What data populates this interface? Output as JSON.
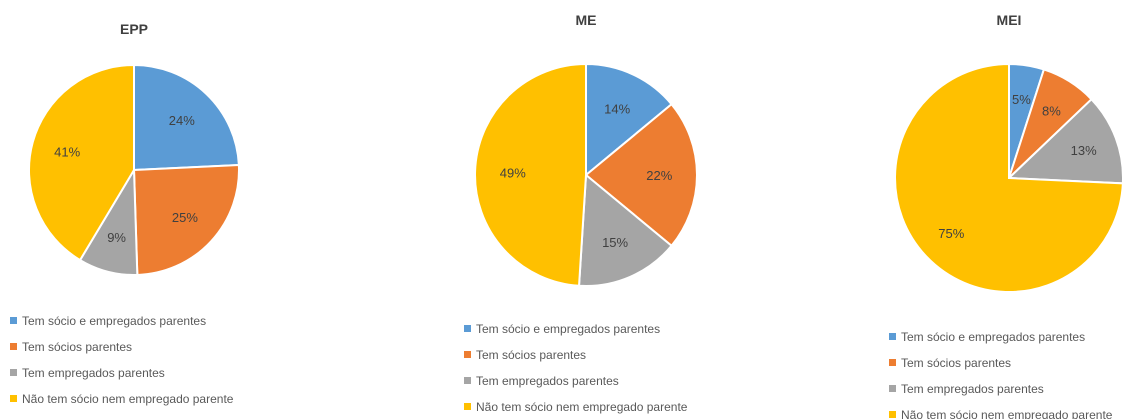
{
  "chart_data": [
    {
      "type": "pie",
      "title": "EPP",
      "categories": [
        "Tem sócio e empregados parentes",
        "Tem sócios parentes",
        "Tem empregados parentes",
        "Não tem sócio nem empregado parente"
      ],
      "values": [
        24,
        25,
        9,
        41
      ],
      "labels": [
        "24%",
        "25%",
        "9%",
        "41%"
      ],
      "legend": "bottom"
    },
    {
      "type": "pie",
      "title": "ME",
      "categories": [
        "Tem sócio e empregados parentes",
        "Tem sócios parentes",
        "Tem empregados parentes",
        "Não tem sócio nem empregado parente"
      ],
      "values": [
        14,
        22,
        15,
        49
      ],
      "labels": [
        "14%",
        "22%",
        "15%",
        "49%"
      ],
      "legend": "bottom"
    },
    {
      "type": "pie",
      "title": "MEI",
      "categories": [
        "Tem sócio e empregados parentes",
        "Tem sócios parentes",
        "Tem empregados parentes",
        "Não tem sócio nem empregado parente"
      ],
      "values": [
        5,
        8,
        13,
        75
      ],
      "labels": [
        "5%",
        "8%",
        "13%",
        "75%"
      ],
      "legend": "bottom"
    }
  ],
  "colors": [
    "#5b9bd5",
    "#ed7d31",
    "#a5a5a5",
    "#ffc000"
  ]
}
